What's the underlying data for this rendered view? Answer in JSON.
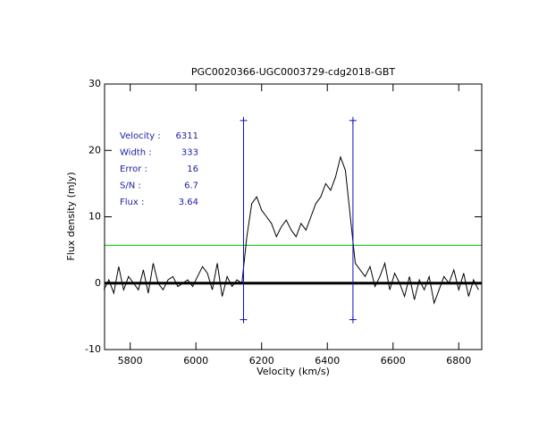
{
  "chart_data": {
    "type": "line",
    "title": "PGC0020366-UGC0003729-cdg2018-GBT",
    "xlabel": "Velocity (km/s)",
    "ylabel": "Flux density (mJy)",
    "xlim": [
      5722,
      6870
    ],
    "ylim": [
      -10,
      30
    ],
    "xticks": [
      5800,
      6000,
      6200,
      6400,
      6600,
      6800
    ],
    "yticks": [
      -10,
      0,
      10,
      20,
      30
    ],
    "x": [
      5720,
      5735,
      5750,
      5765,
      5780,
      5795,
      5810,
      5825,
      5840,
      5855,
      5870,
      5885,
      5900,
      5915,
      5930,
      5945,
      5960,
      5975,
      5990,
      6005,
      6020,
      6035,
      6050,
      6065,
      6080,
      6095,
      6110,
      6125,
      6140,
      6155,
      6170,
      6185,
      6200,
      6215,
      6230,
      6245,
      6260,
      6275,
      6290,
      6305,
      6320,
      6335,
      6350,
      6365,
      6380,
      6395,
      6410,
      6425,
      6440,
      6455,
      6470,
      6485,
      6500,
      6515,
      6530,
      6545,
      6560,
      6575,
      6590,
      6605,
      6620,
      6635,
      6650,
      6665,
      6680,
      6695,
      6710,
      6725,
      6740,
      6755,
      6770,
      6785,
      6800,
      6815,
      6830,
      6845,
      6860
    ],
    "series": [
      {
        "color": "#000000",
        "values": [
          -1,
          0.5,
          -1.5,
          2.5,
          -1,
          1,
          0,
          -1,
          2,
          -1.5,
          3,
          0,
          -1,
          0.5,
          1,
          -0.5,
          0,
          0.5,
          -0.5,
          1,
          2.5,
          1.5,
          -1,
          3,
          -2,
          1,
          -0.5,
          0.5,
          0,
          7,
          12,
          13,
          11,
          10,
          9,
          7,
          8.5,
          9.5,
          8,
          7,
          9,
          8,
          10,
          12,
          13,
          15,
          14,
          16,
          19,
          17,
          10,
          3,
          2,
          1,
          2.5,
          -0.5,
          1,
          3,
          -1,
          1.5,
          0,
          -2,
          1,
          -2.5,
          0.5,
          -1,
          1,
          -3,
          -1,
          1,
          0,
          2,
          -1,
          1.5,
          -2,
          0.5,
          -1
        ]
      }
    ],
    "hlines": [
      {
        "value": 0,
        "color": "#000000"
      },
      {
        "value": 5.7,
        "color": "#00c000"
      }
    ],
    "vlines": [
      {
        "value": 6145,
        "ymin": -5.5,
        "ymax": 24.5,
        "color": "#1010c0"
      },
      {
        "value": 6478,
        "ymin": -5.5,
        "ymax": 24.5,
        "color": "#1010c0"
      }
    ],
    "annotations": [
      {
        "label": "Velocity :",
        "value": 6311
      },
      {
        "label": "Width :",
        "value": 333
      },
      {
        "label": "Error :",
        "value": 16
      },
      {
        "label": "S/N :",
        "value": 6.7
      },
      {
        "label": "Flux :",
        "value": 3.64
      }
    ]
  }
}
